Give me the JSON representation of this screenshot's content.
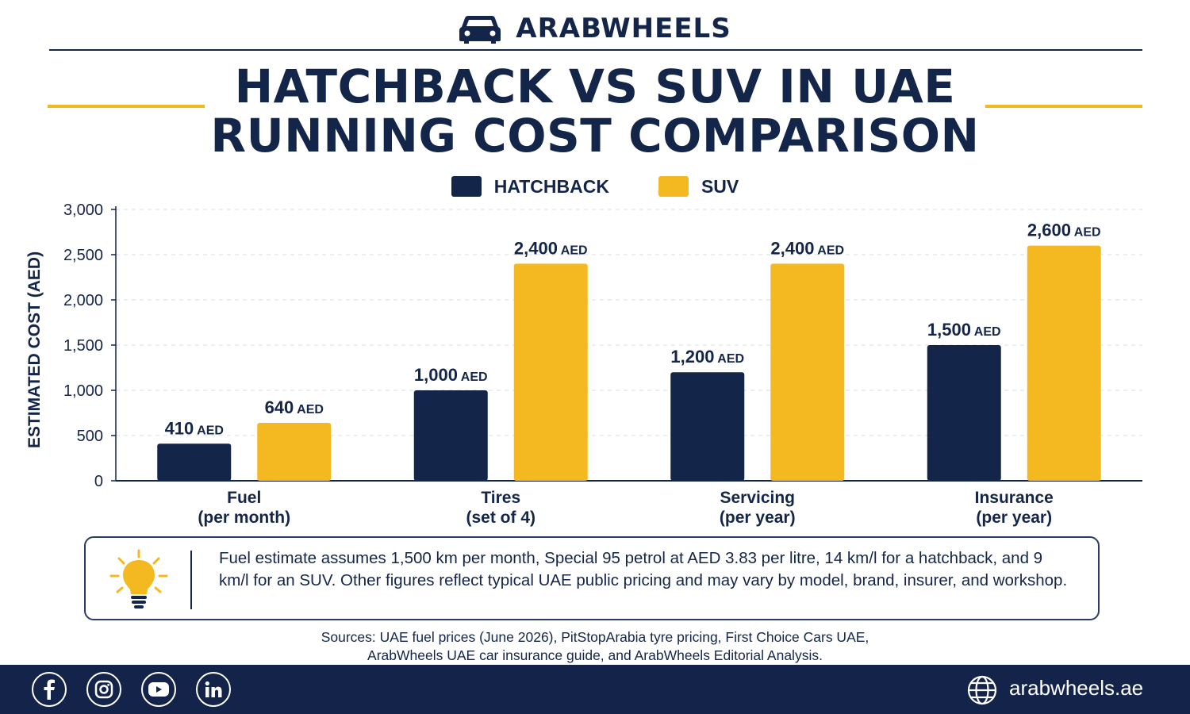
{
  "brand": {
    "name": "ARABWHEELS",
    "logo_icon": "car-icon"
  },
  "title": {
    "line1": "HATCHBACK VS SUV IN UAE",
    "line2": "RUNNING COST COMPARISON"
  },
  "colors": {
    "navy": "#14254a",
    "yellow": "#f4b921",
    "footer": "#13234a"
  },
  "chart_data": {
    "type": "bar",
    "categories": [
      [
        "Fuel",
        "(per month)"
      ],
      [
        "Tires",
        "(set of 4)"
      ],
      [
        "Servicing",
        "(per year)"
      ],
      [
        "Insurance",
        "(per year)"
      ]
    ],
    "series": [
      {
        "name": "HATCHBACK",
        "color": "#14254a",
        "values": [
          410,
          1000,
          1200,
          1500
        ]
      },
      {
        "name": "SUV",
        "color": "#f4b921",
        "values": [
          640,
          2400,
          2400,
          2600
        ]
      }
    ],
    "value_unit": "AED",
    "ylabel": "ESTIMATED COST (AED)",
    "ylim": [
      0,
      3000
    ],
    "yticks": [
      0,
      500,
      1000,
      1500,
      2000,
      2500,
      3000
    ],
    "grid": true,
    "legend": "top-center"
  },
  "note": {
    "icon": "lightbulb-icon",
    "text": "Fuel estimate assumes 1,500 km per month, Special 95 petrol at AED 3.83 per litre, 14 km/l for a hatchback, and 9 km/l for an SUV. Other figures reflect typical UAE public pricing and may vary by model, brand, insurer, and workshop."
  },
  "sources": {
    "line1": "Sources: UAE fuel prices (June 2026), PitStopArabia tyre pricing, First Choice Cars UAE,",
    "line2": "ArabWheels UAE car insurance guide, and ArabWheels Editorial Analysis."
  },
  "footer": {
    "social_icons": [
      "facebook-icon",
      "instagram-icon",
      "youtube-icon",
      "linkedin-icon"
    ],
    "website_icon": "globe-icon",
    "website": "arabwheels.ae"
  }
}
